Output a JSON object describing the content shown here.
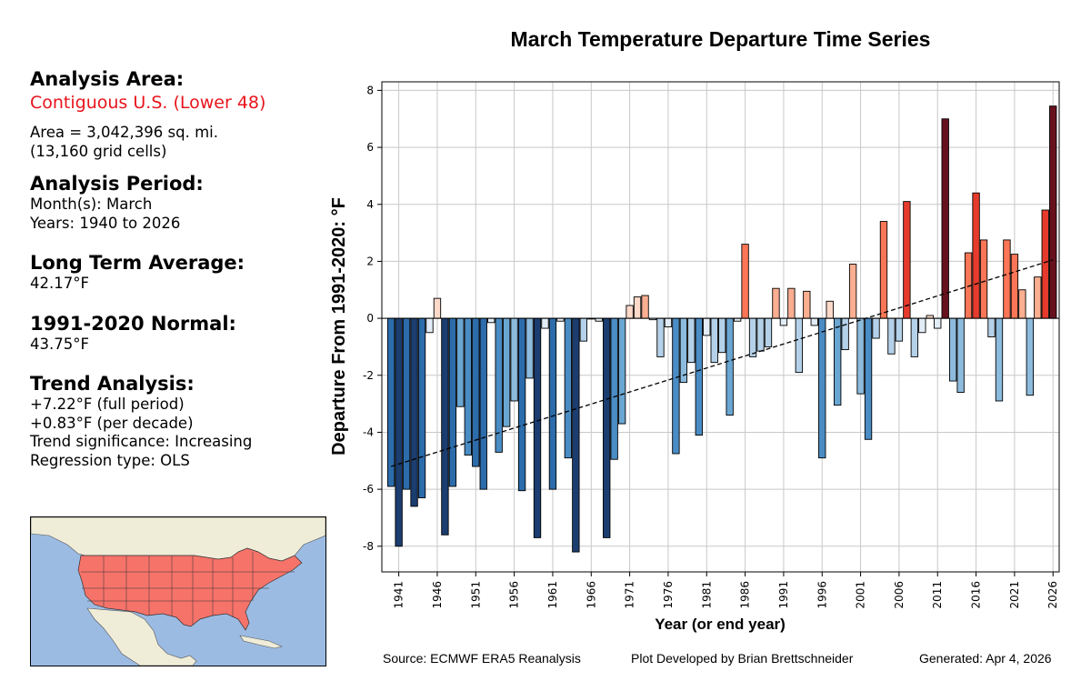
{
  "sidebar": {
    "area_heading": "Analysis Area:",
    "area_region": "Contiguous U.S. (Lower 48)",
    "area_size": "Area = 3,042,396 sq. mi.",
    "area_cells": "(13,160 grid cells)",
    "period_heading": "Analysis Period:",
    "period_months": "Month(s): March",
    "period_years": "Years: 1940 to 2026",
    "lta_heading": "Long Term Average:",
    "lta_value": "42.17°F",
    "normal_heading": "1991-2020 Normal:",
    "normal_value": "43.75°F",
    "trend_heading": "Trend Analysis:",
    "trend_full": "+7.22°F (full period)",
    "trend_decade": "+0.83°F (per decade)",
    "trend_significance": "Trend significance: Increasing",
    "trend_regression": "Regression type: OLS"
  },
  "footer": {
    "source": "Source: ECMWF ERA5 Reanalysis",
    "developer": "Plot Developed by Brian Brettschneider",
    "generated": "Generated: Apr 4, 2026"
  },
  "colors": {
    "map_ocean": "#9cbbe3",
    "map_land": "#efecd8",
    "map_us": "#f6736a",
    "region_text": "#e8141c"
  },
  "chart_data": {
    "type": "bar",
    "title": "March Temperature Departure Time Series",
    "xlabel": "Year (or end year)",
    "ylabel": "Departure From 1991-2020: °F",
    "ylim": [
      -8.9,
      8.3
    ],
    "yticks": [
      -8,
      -6,
      -4,
      -2,
      0,
      2,
      4,
      6,
      8
    ],
    "xticks": [
      1941,
      1946,
      1951,
      1956,
      1961,
      1966,
      1971,
      1976,
      1981,
      1986,
      1991,
      1996,
      2001,
      2006,
      2011,
      2016,
      2021,
      2026
    ],
    "grid": true,
    "x": [
      1940,
      1941,
      1942,
      1943,
      1944,
      1945,
      1946,
      1947,
      1948,
      1949,
      1950,
      1951,
      1952,
      1953,
      1954,
      1955,
      1956,
      1957,
      1958,
      1959,
      1960,
      1961,
      1962,
      1963,
      1964,
      1965,
      1966,
      1967,
      1968,
      1969,
      1970,
      1971,
      1972,
      1973,
      1974,
      1975,
      1976,
      1977,
      1978,
      1979,
      1980,
      1981,
      1982,
      1983,
      1984,
      1985,
      1986,
      1987,
      1988,
      1989,
      1990,
      1991,
      1992,
      1993,
      1994,
      1995,
      1996,
      1997,
      1998,
      1999,
      2000,
      2001,
      2002,
      2003,
      2004,
      2005,
      2006,
      2007,
      2008,
      2009,
      2010,
      2011,
      2012,
      2013,
      2014,
      2015,
      2016,
      2017,
      2018,
      2019,
      2020,
      2021,
      2022,
      2023,
      2024,
      2025,
      2026
    ],
    "values": [
      -5.9,
      -8.0,
      -6.0,
      -6.6,
      -6.3,
      -0.5,
      0.7,
      -7.6,
      -5.9,
      -3.1,
      -4.8,
      -5.2,
      -6.0,
      -0.15,
      -4.7,
      -3.8,
      -2.9,
      -6.05,
      -2.1,
      -7.7,
      -0.35,
      -6.0,
      -0.1,
      -4.9,
      -8.2,
      -0.8,
      0.0,
      -0.1,
      -7.7,
      -4.95,
      -3.7,
      0.45,
      0.75,
      0.8,
      -0.05,
      -1.35,
      -0.3,
      -4.75,
      -2.25,
      -1.55,
      -4.1,
      -0.6,
      -1.55,
      -1.2,
      -3.4,
      -0.1,
      2.6,
      -1.35,
      -1.15,
      -1.0,
      1.05,
      -0.25,
      1.05,
      -1.9,
      0.95,
      -0.25,
      -4.9,
      0.6,
      -3.05,
      -1.1,
      1.9,
      -2.65,
      -4.25,
      -0.7,
      3.4,
      -1.25,
      -0.8,
      4.1,
      -1.35,
      -0.5,
      0.1,
      -0.35,
      7.0,
      -2.2,
      -2.6,
      2.3,
      4.4,
      2.75,
      -0.65,
      -2.9,
      2.75,
      2.25,
      1.0,
      -2.7,
      1.45,
      3.8,
      7.45
    ],
    "trend_line": {
      "start": {
        "x": 1940,
        "y": -5.2
      },
      "end": {
        "x": 2026,
        "y": 2.05
      },
      "style": "dashed"
    }
  }
}
